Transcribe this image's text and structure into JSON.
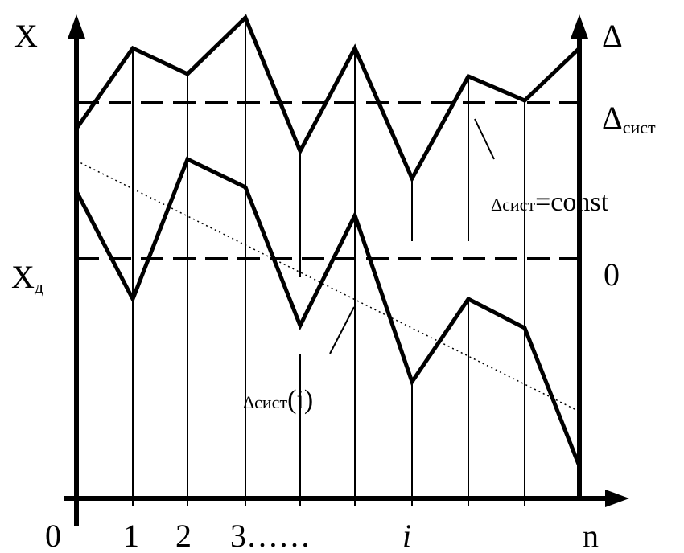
{
  "labels": {
    "x_axis_top": "X",
    "x_true": "X",
    "x_true_sub": "д",
    "delta_axis_top": "Δ",
    "delta_sys": "Δ",
    "delta_sys_sub": "сист",
    "const_delta": "Δсист",
    "const_eq": "=const",
    "zero_right": "0",
    "var_delta": "Δсист",
    "var_arg": "(i)"
  },
  "ticks": {
    "t0": "0",
    "t1": "1",
    "t2": "2",
    "t3": "3……",
    "ti": "i",
    "tn": "n"
  }
}
